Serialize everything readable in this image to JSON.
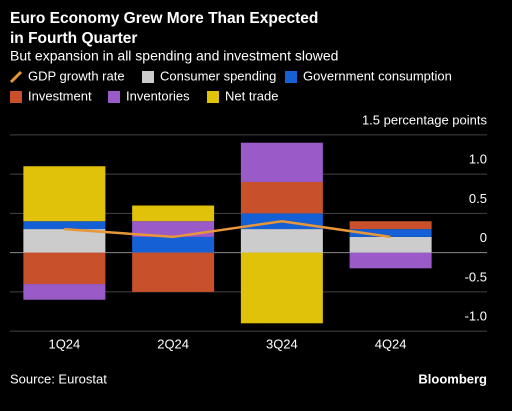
{
  "chart_data": {
    "type": "bar",
    "stacked": true,
    "title": "Euro Economy Grew More Than Expected in Fourth Quarter",
    "subtitle": "But expansion in all spending and investment slowed",
    "categories": [
      "1Q24",
      "2Q24",
      "3Q24",
      "4Q24"
    ],
    "series": [
      {
        "name": "GDP growth rate",
        "type": "line",
        "color": "#e8963a",
        "values": [
          0.3,
          0.2,
          0.4,
          0.2
        ]
      },
      {
        "name": "Consumer spending",
        "color": "#cccccc",
        "values": [
          0.3,
          0.0,
          0.3,
          0.2
        ]
      },
      {
        "name": "Government consumption",
        "color": "#1560d4",
        "values": [
          0.1,
          0.2,
          0.2,
          0.1
        ]
      },
      {
        "name": "Investment",
        "color": "#c8502a",
        "values": [
          -0.4,
          -0.5,
          0.4,
          0.1
        ]
      },
      {
        "name": "Inventories",
        "color": "#9a5bc9",
        "values": [
          -0.2,
          0.2,
          0.5,
          -0.2
        ]
      },
      {
        "name": "Net trade",
        "color": "#e0c20a",
        "values": [
          0.7,
          0.2,
          -0.9,
          0.0
        ]
      }
    ],
    "ylim": [
      -1.1,
      1.6
    ],
    "yticks": [
      {
        "value": -1.0,
        "label": "-1.0"
      },
      {
        "value": -0.5,
        "label": "-0.5"
      },
      0,
      {
        "value": 0.5,
        "label": "0.5"
      },
      {
        "value": 1.0,
        "label": "1.0"
      },
      {
        "value": 1.5,
        "label": "1.5 percentage points"
      }
    ],
    "grid": true,
    "source": "Source: Eurostat",
    "brand": "Bloomberg"
  }
}
